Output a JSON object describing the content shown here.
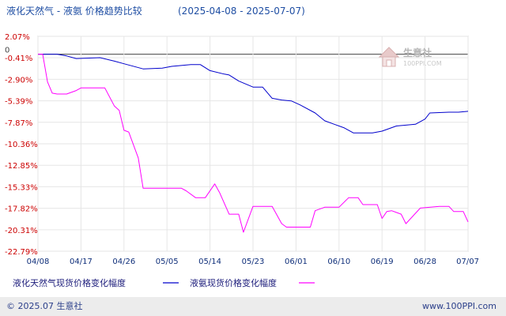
{
  "colors": {
    "accent_blue": "#0000cc",
    "accent_magenta": "#ff00ff",
    "title_text": "#1f4ea3",
    "ytick_text": "#cc0000",
    "xtick_text": "#0f2f7a",
    "grid": "#e6e6e6",
    "footer_bg": "#ececec"
  },
  "header": {
    "title": "液化天然气 - 液氨 价格趋势比较",
    "date_range": "(2025-04-08 - 2025-07-07)"
  },
  "watermark": {
    "name": "生意社",
    "url": "100PPI.COM"
  },
  "legend": {
    "items": [
      {
        "label": "液化天然气现货价格变化幅度",
        "color": "#0000cc"
      },
      {
        "label": "液氨现货价格变化幅度",
        "color": "#ff00ff"
      }
    ]
  },
  "footer": {
    "copyright": "© 2025.07 生意社",
    "website": "www.100PPI.com"
  },
  "chart_data": {
    "type": "line",
    "title": "液化天然气 - 液氨 价格趋势比较",
    "date_range": "(2025-04-08 - 2025-07-07)",
    "xlabel": "",
    "ylabel": "",
    "ylim": [
      -22.79,
      2.07
    ],
    "zero_marker": "0",
    "y_ticks": [
      "2.07%",
      "-0.41%",
      "-2.90%",
      "-5.39%",
      "-7.87%",
      "-10.36%",
      "-12.85%",
      "-15.33%",
      "-17.82%",
      "-20.31%",
      "-22.79%"
    ],
    "y_tick_values": [
      2.07,
      -0.41,
      -2.9,
      -5.39,
      -7.87,
      -10.36,
      -12.85,
      -15.33,
      -17.82,
      -20.31,
      -22.79
    ],
    "x_ticks": [
      "04/08",
      "04/17",
      "04/26",
      "05/05",
      "05/14",
      "05/23",
      "06/01",
      "06/10",
      "06/19",
      "06/28",
      "07/07"
    ],
    "x_range": [
      0,
      90
    ],
    "grid": true,
    "legend_position": "bottom",
    "series": [
      {
        "name": "液化天然气现货价格变化幅度",
        "color": "#0000cc",
        "points": [
          [
            0,
            0
          ],
          [
            4,
            0
          ],
          [
            6,
            -0.2
          ],
          [
            8,
            -0.5
          ],
          [
            13,
            -0.4
          ],
          [
            16,
            -0.8
          ],
          [
            18,
            -1.1
          ],
          [
            22,
            -1.7
          ],
          [
            26,
            -1.6
          ],
          [
            28,
            -1.4
          ],
          [
            32,
            -1.2
          ],
          [
            34,
            -1.2
          ],
          [
            36,
            -1.9
          ],
          [
            39,
            -2.3
          ],
          [
            40,
            -2.4
          ],
          [
            42,
            -3.1
          ],
          [
            45,
            -3.8
          ],
          [
            47,
            -3.8
          ],
          [
            49,
            -5.1
          ],
          [
            51,
            -5.3
          ],
          [
            53,
            -5.4
          ],
          [
            55,
            -5.9
          ],
          [
            58,
            -6.8
          ],
          [
            60,
            -7.7
          ],
          [
            62,
            -8.1
          ],
          [
            64,
            -8.5
          ],
          [
            66,
            -9.1
          ],
          [
            70,
            -9.1
          ],
          [
            72,
            -8.9
          ],
          [
            75,
            -8.3
          ],
          [
            77,
            -8.2
          ],
          [
            79,
            -8.1
          ],
          [
            81,
            -7.5
          ],
          [
            82,
            -6.8
          ],
          [
            86,
            -6.7
          ],
          [
            88,
            -6.7
          ],
          [
            90,
            -6.6
          ]
        ]
      },
      {
        "name": "液氨现货价格变化幅度",
        "color": "#ff00ff",
        "points": [
          [
            0,
            0
          ],
          [
            1,
            0
          ],
          [
            2,
            -3.2
          ],
          [
            3,
            -4.5
          ],
          [
            4,
            -4.6
          ],
          [
            6,
            -4.6
          ],
          [
            8,
            -4.2
          ],
          [
            9,
            -3.9
          ],
          [
            14,
            -3.9
          ],
          [
            16,
            -6.0
          ],
          [
            17,
            -6.5
          ],
          [
            18,
            -8.8
          ],
          [
            19,
            -9.0
          ],
          [
            21,
            -12.0
          ],
          [
            22,
            -15.5
          ],
          [
            30,
            -15.5
          ],
          [
            31,
            -15.8
          ],
          [
            33,
            -16.6
          ],
          [
            35,
            -16.6
          ],
          [
            37,
            -15.0
          ],
          [
            38,
            -16.0
          ],
          [
            40,
            -18.5
          ],
          [
            42,
            -18.5
          ],
          [
            43,
            -20.6
          ],
          [
            45,
            -17.6
          ],
          [
            48,
            -17.6
          ],
          [
            49,
            -17.6
          ],
          [
            51,
            -19.6
          ],
          [
            52,
            -20.0
          ],
          [
            57,
            -20.0
          ],
          [
            58,
            -18.1
          ],
          [
            60,
            -17.7
          ],
          [
            63,
            -17.7
          ],
          [
            65,
            -16.6
          ],
          [
            67,
            -16.6
          ],
          [
            68,
            -17.4
          ],
          [
            71,
            -17.4
          ],
          [
            72,
            -19.0
          ],
          [
            73,
            -18.2
          ],
          [
            74,
            -18.1
          ],
          [
            75,
            -18.3
          ],
          [
            76,
            -18.5
          ],
          [
            77,
            -19.6
          ],
          [
            78,
            -19.0
          ],
          [
            80,
            -17.8
          ],
          [
            84,
            -17.6
          ],
          [
            86,
            -17.6
          ],
          [
            87,
            -18.2
          ],
          [
            89,
            -18.2
          ],
          [
            90,
            -19.4
          ]
        ]
      }
    ]
  }
}
